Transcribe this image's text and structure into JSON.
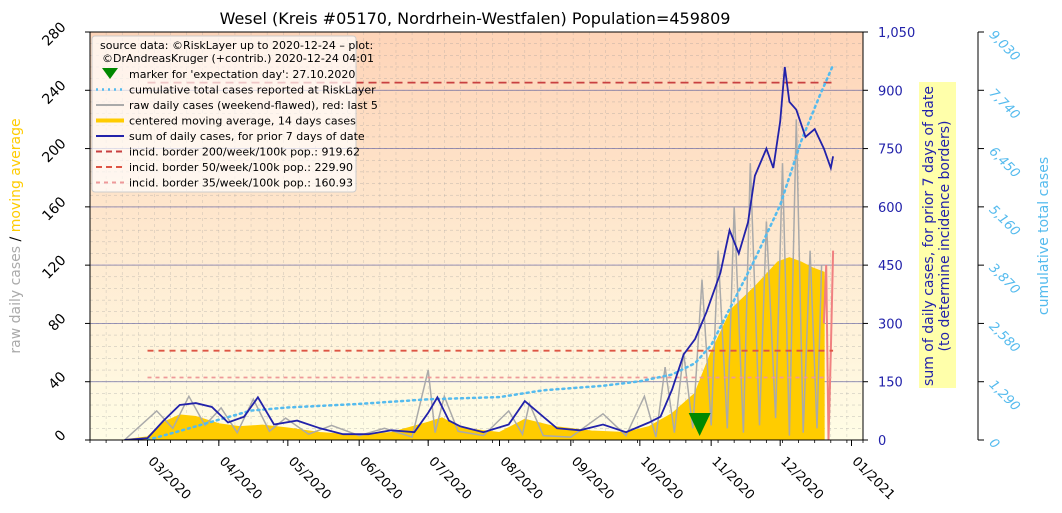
{
  "colors": {
    "bg_top": "#fed4b8",
    "bg_bottom": "#fffde6",
    "raw": "#aaaaaa",
    "raw_last5": "#f08080",
    "moving_avg": "#ffcc00",
    "weekly_sum": "#2222aa",
    "cumulative": "#55bbee",
    "border200": "#c84040",
    "border50": "#dd5544",
    "border35": "#ee9999",
    "marker": "#008800",
    "right_axis": "#2222aa",
    "cum_axis": "#55bbee",
    "left_label_raw": "#aaaaaa",
    "left_label_avg": "#ffcc00"
  },
  "chart_data": {
    "type": "line",
    "title": "Wesel (Kreis #05170, Nordrhein-Westfalen) Population=459809",
    "x_range": [
      "2020-02-05",
      "2021-01-06"
    ],
    "x_ticks": [
      "03/2020",
      "04/2020",
      "05/2020",
      "06/2020",
      "07/2020",
      "08/2020",
      "09/2020",
      "10/2020",
      "11/2020",
      "12/2020",
      "01/2021"
    ],
    "left_axis": {
      "label_part1": "raw daily cases",
      "separator": "/",
      "label_part2": "moving average",
      "ylim": [
        0,
        280
      ],
      "ticks": [
        "0",
        "40",
        "80",
        "120",
        "160",
        "200",
        "240",
        "280"
      ]
    },
    "right_axis": {
      "label_line1": "sum of daily cases, for prior 7 days of date",
      "label_line2": "(to determine incidence borders)",
      "ylim": [
        0,
        1050
      ],
      "ticks": [
        "0",
        "150",
        "300",
        "450",
        "600",
        "750",
        "900",
        "1,050"
      ]
    },
    "cum_axis": {
      "label": "cumulative total cases",
      "ylim": [
        0,
        9030
      ],
      "ticks": [
        "0",
        "1,290",
        "2,580",
        "3,870",
        "5,160",
        "6,450",
        "7,740",
        "9,030"
      ]
    },
    "legend": {
      "source_line1": "source data: ©RiskLayer up to 2020-12-24 – plot:",
      "source_line2": "©DrAndreasKruger (+contrib.) 2020-12-24 04:01",
      "placement": "top-left",
      "entries": [
        {
          "label": "marker for 'expectation day': 27.10.2020"
        },
        {
          "label": "cumulative total cases reported at RiskLayer"
        },
        {
          "label": "raw daily cases (weekend-flawed), red: last 5"
        },
        {
          "label": "centered moving average, 14 days cases"
        },
        {
          "label": "sum of daily cases, for prior 7 days of date"
        },
        {
          "label": "incid. border 200/week/100k pop.: 919.62"
        },
        {
          "label": "incid. border 50/week/100k pop.: 229.90"
        },
        {
          "label": "incid. border 35/week/100k pop.: 160.93"
        }
      ]
    },
    "expectation_day": "2020-10-27",
    "incidence_borders": {
      "b200": 919.62,
      "b50": 229.9,
      "b35": 160.93,
      "start": "2020-03-01",
      "end": "2020-12-24"
    },
    "series": {
      "weekly_sum": {
        "name": "sum of daily cases, for prior 7 days of date",
        "x": [
          "2020-02-20",
          "2020-03-01",
          "2020-03-08",
          "2020-03-15",
          "2020-03-22",
          "2020-03-29",
          "2020-04-05",
          "2020-04-12",
          "2020-04-18",
          "2020-04-25",
          "2020-05-05",
          "2020-05-15",
          "2020-05-25",
          "2020-06-05",
          "2020-06-15",
          "2020-06-25",
          "2020-07-01",
          "2020-07-05",
          "2020-07-10",
          "2020-07-15",
          "2020-07-25",
          "2020-08-05",
          "2020-08-12",
          "2020-08-20",
          "2020-08-26",
          "2020-09-05",
          "2020-09-15",
          "2020-09-25",
          "2020-10-05",
          "2020-10-10",
          "2020-10-15",
          "2020-10-20",
          "2020-10-25",
          "2020-10-30",
          "2020-11-05",
          "2020-11-09",
          "2020-11-13",
          "2020-11-17",
          "2020-11-20",
          "2020-11-25",
          "2020-11-28",
          "2020-12-01",
          "2020-12-03",
          "2020-12-05",
          "2020-12-08",
          "2020-12-12",
          "2020-12-16",
          "2020-12-20",
          "2020-12-23",
          "2020-12-24"
        ],
        "values": [
          0,
          5,
          50,
          90,
          95,
          85,
          45,
          60,
          110,
          40,
          50,
          30,
          15,
          15,
          25,
          20,
          70,
          110,
          50,
          35,
          20,
          40,
          100,
          60,
          30,
          25,
          40,
          20,
          45,
          60,
          130,
          220,
          260,
          330,
          430,
          540,
          480,
          560,
          680,
          750,
          700,
          820,
          960,
          870,
          850,
          780,
          800,
          750,
          700,
          730
        ]
      },
      "moving_average": {
        "name": "centered moving average, 14 days cases",
        "x": [
          "2020-02-20",
          "2020-03-01",
          "2020-03-08",
          "2020-03-15",
          "2020-03-22",
          "2020-04-01",
          "2020-04-10",
          "2020-04-20",
          "2020-05-01",
          "2020-05-15",
          "2020-06-01",
          "2020-06-15",
          "2020-07-01",
          "2020-07-07",
          "2020-07-15",
          "2020-08-01",
          "2020-08-12",
          "2020-08-25",
          "2020-09-10",
          "2020-09-25",
          "2020-10-05",
          "2020-10-15",
          "2020-10-25",
          "2020-11-01",
          "2020-11-10",
          "2020-11-20",
          "2020-11-30",
          "2020-12-05",
          "2020-12-10",
          "2020-12-15",
          "2020-12-20"
        ],
        "values": [
          0,
          2,
          12,
          17,
          16,
          11,
          9,
          10,
          8,
          5,
          3,
          5,
          12,
          15,
          8,
          5,
          14,
          9,
          6,
          5,
          9,
          18,
          32,
          60,
          90,
          105,
          122,
          125,
          122,
          118,
          115
        ]
      },
      "raw_daily": {
        "name": "raw daily cases (weekend-flawed), red: last 5",
        "x": [
          "2020-02-20",
          "2020-03-05",
          "2020-03-12",
          "2020-03-19",
          "2020-03-26",
          "2020-04-02",
          "2020-04-09",
          "2020-04-16",
          "2020-04-23",
          "2020-04-30",
          "2020-05-10",
          "2020-05-20",
          "2020-06-01",
          "2020-06-12",
          "2020-06-24",
          "2020-07-01",
          "2020-07-04",
          "2020-07-08",
          "2020-07-14",
          "2020-07-25",
          "2020-08-05",
          "2020-08-11",
          "2020-08-14",
          "2020-08-20",
          "2020-09-01",
          "2020-09-15",
          "2020-09-25",
          "2020-10-03",
          "2020-10-08",
          "2020-10-12",
          "2020-10-16",
          "2020-10-20",
          "2020-10-24",
          "2020-10-28",
          "2020-11-01",
          "2020-11-04",
          "2020-11-08",
          "2020-11-11",
          "2020-11-15",
          "2020-11-18",
          "2020-11-22",
          "2020-11-25",
          "2020-11-29",
          "2020-12-02",
          "2020-12-05",
          "2020-12-08",
          "2020-12-11",
          "2020-12-14",
          "2020-12-17",
          "2020-12-19"
        ],
        "values": [
          0,
          20,
          8,
          30,
          10,
          22,
          5,
          28,
          6,
          15,
          4,
          10,
          3,
          8,
          2,
          48,
          5,
          30,
          6,
          3,
          20,
          4,
          25,
          3,
          2,
          18,
          3,
          30,
          2,
          50,
          5,
          60,
          8,
          110,
          10,
          130,
          8,
          160,
          5,
          190,
          10,
          150,
          15,
          190,
          3,
          220,
          5,
          130,
          8,
          120
        ]
      },
      "raw_last5": {
        "name": "raw daily cases, last 5",
        "x": [
          "2020-12-20",
          "2020-12-21",
          "2020-12-22",
          "2020-12-23",
          "2020-12-24"
        ],
        "values": [
          80,
          120,
          0,
          60,
          130
        ]
      },
      "cumulative": {
        "name": "cumulative total cases reported at RiskLayer",
        "x": [
          "2020-03-01",
          "2020-03-15",
          "2020-04-01",
          "2020-04-15",
          "2020-05-01",
          "2020-06-01",
          "2020-07-01",
          "2020-08-01",
          "2020-08-20",
          "2020-09-15",
          "2020-10-01",
          "2020-10-15",
          "2020-10-25",
          "2020-11-01",
          "2020-11-10",
          "2020-11-20",
          "2020-12-01",
          "2020-12-10",
          "2020-12-18",
          "2020-12-24"
        ],
        "values": [
          0,
          200,
          450,
          650,
          720,
          800,
          900,
          950,
          1100,
          1200,
          1300,
          1450,
          1700,
          2100,
          3000,
          4000,
          5200,
          6600,
          7600,
          8300
        ]
      }
    }
  }
}
